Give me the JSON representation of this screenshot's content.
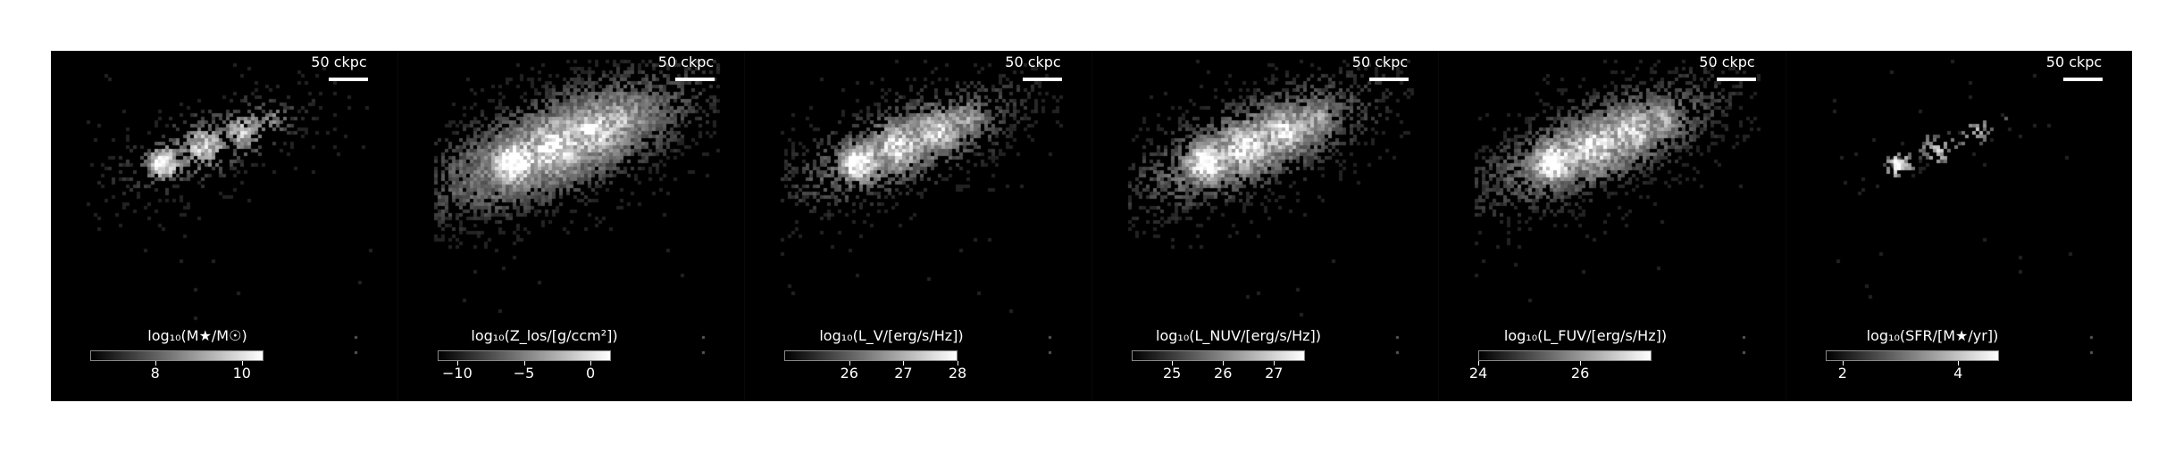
{
  "figure": {
    "panels": [
      {
        "id": "mass",
        "scale_label": "50 ckpc",
        "colorbar_label": "log₁₀(M★/M☉)",
        "colorbar_range": [
          6.5,
          10.5
        ],
        "ticks": [
          {
            "value": 8,
            "label": "8"
          },
          {
            "value": 10,
            "label": "10"
          }
        ],
        "appearance": "compact bright core, faint clumpy tail"
      },
      {
        "id": "metallicity",
        "scale_label": "50 ckpc",
        "colorbar_label": "log₁₀(Z_los/[g/ccm²])",
        "colorbar_range": [
          -11.5,
          1.5
        ],
        "ticks": [
          {
            "value": -10,
            "label": "−10"
          },
          {
            "value": -5,
            "label": "−5"
          },
          {
            "value": 0,
            "label": "0"
          }
        ],
        "appearance": "extended bright diffuse halo"
      },
      {
        "id": "lv",
        "scale_label": "50 ckpc",
        "colorbar_label": "log₁₀(L_V/[erg/s/Hz])",
        "colorbar_range": [
          24.8,
          28
        ],
        "ticks": [
          {
            "value": 26,
            "label": "26"
          },
          {
            "value": 27,
            "label": "27"
          },
          {
            "value": 28,
            "label": "28"
          }
        ],
        "appearance": "clumpy emission across tail"
      },
      {
        "id": "lnuv",
        "scale_label": "50 ckpc",
        "colorbar_label": "log₁₀(L_NUV/[erg/s/Hz])",
        "colorbar_range": [
          24.2,
          27.6
        ],
        "ticks": [
          {
            "value": 25,
            "label": "25"
          },
          {
            "value": 26,
            "label": "26"
          },
          {
            "value": 27,
            "label": "27"
          }
        ],
        "appearance": "bright clumpy emission"
      },
      {
        "id": "lfuv",
        "scale_label": "50 ckpc",
        "colorbar_label": "log₁₀(L_FUV/[erg/s/Hz])",
        "colorbar_range": [
          24,
          27.4
        ],
        "ticks": [
          {
            "value": 24,
            "label": "24"
          },
          {
            "value": 26,
            "label": "26"
          }
        ],
        "appearance": "bright clumpy emission"
      },
      {
        "id": "sfr",
        "scale_label": "50 ckpc",
        "colorbar_label": "log₁₀(SFR/[M★/yr])",
        "colorbar_range": [
          1.7,
          4.7
        ],
        "ticks": [
          {
            "value": 2,
            "label": "2"
          },
          {
            "value": 4,
            "label": "4"
          }
        ],
        "appearance": "sparse knots"
      }
    ],
    "colors": {
      "background": "#000000",
      "figure_bg": "#ffffff",
      "text": "#ffffff"
    }
  }
}
